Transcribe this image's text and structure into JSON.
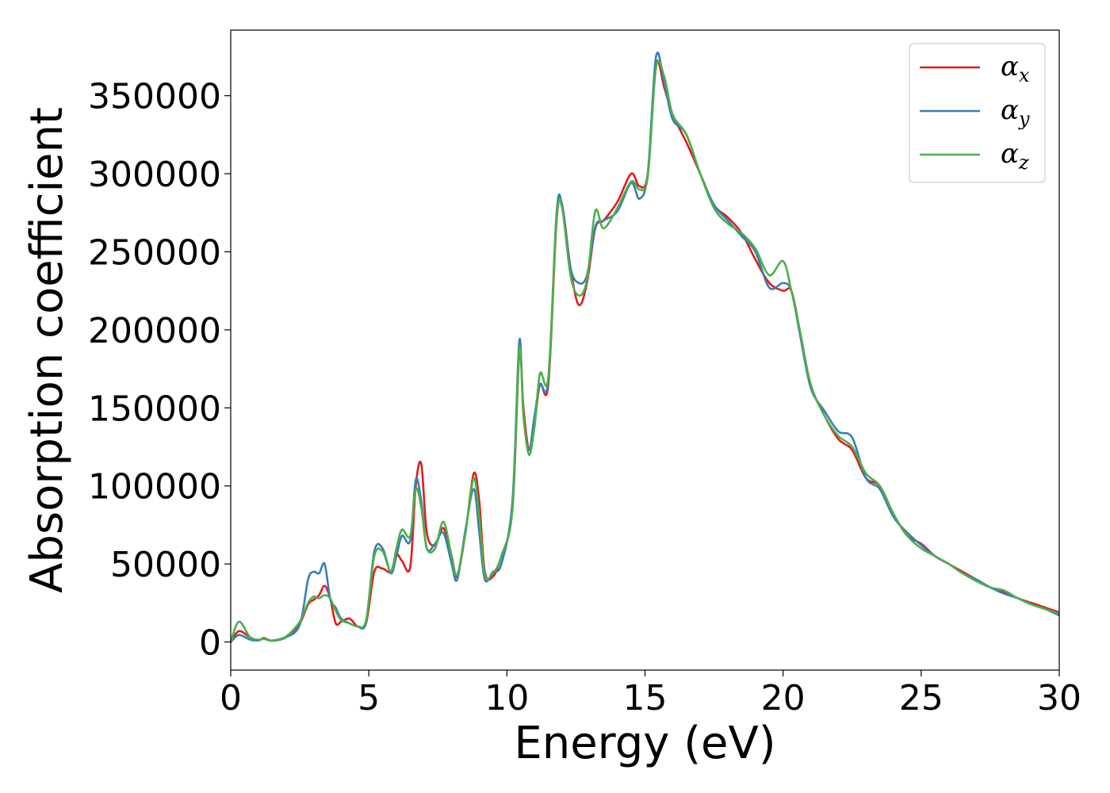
{
  "chart_data": {
    "type": "line",
    "title": "",
    "xlabel": "Energy (eV)",
    "ylabel": "Absorption coefficient",
    "xlim": [
      0,
      30
    ],
    "ylim": [
      -18000,
      392000
    ],
    "xticks": [
      0,
      5,
      10,
      15,
      20,
      25,
      30
    ],
    "xtick_labels": [
      "0",
      "5",
      "10",
      "15",
      "20",
      "25",
      "30"
    ],
    "yticks": [
      0,
      50000,
      100000,
      150000,
      200000,
      250000,
      300000,
      350000
    ],
    "ytick_labels": [
      "0",
      "50000",
      "100000",
      "150000",
      "200000",
      "250000",
      "300000",
      "350000"
    ],
    "grid": false,
    "legend_position": "top-right",
    "series": [
      {
        "name": "α",
        "subscript": "x",
        "color": "#e41a1c",
        "x": [
          0,
          0.3,
          0.7,
          1.0,
          1.2,
          1.5,
          2.0,
          2.5,
          2.8,
          3.0,
          3.2,
          3.4,
          3.6,
          3.8,
          4.0,
          4.3,
          4.6,
          4.9,
          5.2,
          5.5,
          5.8,
          6.0,
          6.2,
          6.5,
          6.7,
          6.9,
          7.1,
          7.4,
          7.7,
          8.0,
          8.2,
          8.5,
          8.8,
          9.0,
          9.2,
          9.5,
          9.8,
          10.2,
          10.45,
          10.6,
          10.8,
          11.0,
          11.2,
          11.5,
          11.8,
          12.0,
          12.3,
          12.6,
          12.9,
          13.2,
          13.5,
          14.0,
          14.5,
          14.8,
          15.1,
          15.4,
          15.7,
          16.0,
          16.5,
          17.0,
          17.5,
          18.0,
          18.5,
          19.0,
          19.5,
          20.0,
          20.3,
          20.6,
          21.0,
          21.5,
          22.0,
          22.5,
          23.0,
          23.5,
          24.0,
          24.5,
          25.0,
          25.5,
          26.0,
          26.5,
          27.0,
          27.5,
          28.0,
          28.5,
          29.0,
          29.5,
          30.0
        ],
        "y": [
          0,
          7000,
          3000,
          1000,
          2500,
          800,
          3000,
          12000,
          24000,
          27000,
          30000,
          36000,
          28000,
          12000,
          13000,
          15000,
          10000,
          12000,
          45000,
          47000,
          45000,
          56000,
          52000,
          48000,
          100000,
          114000,
          70000,
          62000,
          73000,
          55000,
          42000,
          70000,
          108000,
          90000,
          45000,
          42000,
          55000,
          85000,
          185000,
          150000,
          123000,
          140000,
          165000,
          165000,
          270000,
          280000,
          240000,
          216000,
          230000,
          265000,
          270000,
          282000,
          300000,
          292000,
          300000,
          370000,
          355000,
          338000,
          320000,
          300000,
          280000,
          272000,
          262000,
          245000,
          230000,
          225000,
          225000,
          200000,
          165000,
          145000,
          130000,
          123000,
          105000,
          100000,
          82000,
          68000,
          63000,
          55000,
          50000,
          45000,
          40000,
          35000,
          32000,
          28000,
          25000,
          22000,
          19000
        ]
      },
      {
        "name": "α",
        "subscript": "y",
        "color": "#377eb8",
        "x": [
          0,
          0.3,
          0.7,
          1.0,
          1.2,
          1.5,
          2.0,
          2.5,
          2.8,
          3.0,
          3.2,
          3.4,
          3.6,
          3.8,
          4.0,
          4.3,
          4.6,
          4.9,
          5.2,
          5.5,
          5.8,
          6.0,
          6.2,
          6.5,
          6.7,
          6.9,
          7.1,
          7.4,
          7.7,
          8.0,
          8.2,
          8.5,
          8.8,
          9.0,
          9.2,
          9.5,
          9.8,
          10.2,
          10.45,
          10.6,
          10.8,
          11.0,
          11.2,
          11.5,
          11.8,
          12.0,
          12.3,
          12.6,
          12.9,
          13.2,
          13.5,
          14.0,
          14.5,
          14.8,
          15.1,
          15.4,
          15.7,
          16.0,
          16.5,
          17.0,
          17.5,
          18.0,
          18.5,
          19.0,
          19.5,
          20.0,
          20.3,
          20.6,
          21.0,
          21.5,
          22.0,
          22.5,
          23.0,
          23.5,
          24.0,
          24.5,
          25.0,
          25.5,
          26.0,
          26.5,
          27.0,
          27.5,
          28.0,
          28.5,
          29.0,
          29.5,
          30.0
        ],
        "y": [
          0,
          4500,
          1500,
          1000,
          2000,
          800,
          3000,
          11000,
          40000,
          45000,
          44000,
          50000,
          28000,
          22000,
          15000,
          12000,
          10000,
          13000,
          58000,
          60000,
          44000,
          55000,
          68000,
          65000,
          104000,
          90000,
          60000,
          63000,
          70000,
          50000,
          40000,
          72000,
          98000,
          70000,
          40000,
          45000,
          50000,
          90000,
          193000,
          145000,
          123000,
          145000,
          165000,
          168000,
          275000,
          280000,
          240000,
          230000,
          235000,
          266000,
          270000,
          276000,
          294000,
          284000,
          300000,
          375000,
          358000,
          335000,
          325000,
          300000,
          280000,
          270000,
          260000,
          250000,
          227000,
          230000,
          225000,
          198000,
          163000,
          148000,
          135000,
          131000,
          105000,
          98000,
          80000,
          70000,
          62000,
          55000,
          50000,
          44000,
          40000,
          35000,
          31000,
          28000,
          24000,
          21000,
          17000
        ]
      },
      {
        "name": "α",
        "subscript": "z",
        "color": "#4daf4a",
        "x": [
          0,
          0.3,
          0.7,
          1.0,
          1.2,
          1.5,
          2.0,
          2.5,
          2.8,
          3.0,
          3.2,
          3.4,
          3.6,
          3.8,
          4.0,
          4.3,
          4.6,
          4.9,
          5.2,
          5.5,
          5.8,
          6.0,
          6.2,
          6.5,
          6.7,
          6.9,
          7.1,
          7.4,
          7.7,
          8.0,
          8.2,
          8.5,
          8.8,
          9.0,
          9.2,
          9.5,
          9.8,
          10.2,
          10.45,
          10.6,
          10.8,
          11.0,
          11.2,
          11.5,
          11.8,
          12.0,
          12.3,
          12.6,
          12.9,
          13.2,
          13.5,
          14.0,
          14.5,
          14.8,
          15.1,
          15.4,
          15.7,
          16.0,
          16.5,
          17.0,
          17.5,
          18.0,
          18.5,
          19.0,
          19.5,
          20.0,
          20.3,
          20.6,
          21.0,
          21.5,
          22.0,
          22.5,
          23.0,
          23.5,
          24.0,
          24.5,
          25.0,
          25.5,
          26.0,
          26.5,
          27.0,
          27.5,
          28.0,
          28.5,
          29.0,
          29.5,
          30.0
        ],
        "y": [
          0,
          13000,
          3000,
          1500,
          2000,
          1000,
          3500,
          13000,
          25000,
          29000,
          28000,
          30000,
          28000,
          20000,
          14000,
          12000,
          10000,
          14000,
          55000,
          58000,
          45000,
          60000,
          72000,
          68000,
          98000,
          86000,
          60000,
          60000,
          77000,
          55000,
          43000,
          70000,
          105000,
          80000,
          43000,
          44000,
          55000,
          85000,
          188000,
          145000,
          120000,
          138000,
          172000,
          170000,
          272000,
          278000,
          235000,
          222000,
          232000,
          276000,
          265000,
          278000,
          295000,
          290000,
          298000,
          368000,
          362000,
          338000,
          325000,
          300000,
          278000,
          268000,
          262000,
          252000,
          235000,
          244000,
          225000,
          200000,
          165000,
          145000,
          132000,
          125000,
          108000,
          100000,
          82000,
          68000,
          60000,
          55000,
          50000,
          44000,
          39000,
          35000,
          33000,
          28000,
          24000,
          21000,
          18000
        ]
      }
    ]
  }
}
